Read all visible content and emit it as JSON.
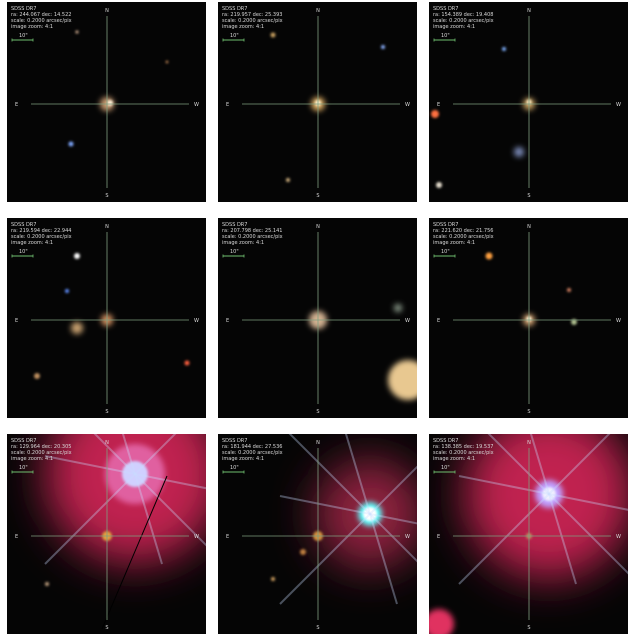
{
  "panels": [
    {
      "survey": "SDSS DR7",
      "coords": "ra: 244.067 dec: 14.522",
      "scale": "scale: 0.2000 arcsec/pix",
      "zoom": "image zoom: 4:1",
      "scale_bar": "10\"",
      "compass": {
        "n": "N",
        "e": "E",
        "w": "W",
        "s": "S"
      }
    },
    {
      "survey": "SDSS DR7",
      "coords": "ra: 219.957 dec: 25.393",
      "scale": "scale: 0.2000 arcsec/pix",
      "zoom": "image zoom: 4:1",
      "scale_bar": "10\"",
      "compass": {
        "n": "N",
        "e": "E",
        "w": "W",
        "s": "S"
      }
    },
    {
      "survey": "SDSS DR7",
      "coords": "ra: 154.389 dec: 19.408",
      "scale": "scale: 0.2000 arcsec/pix",
      "zoom": "image zoom: 4:1",
      "scale_bar": "10\"",
      "compass": {
        "n": "N",
        "e": "E",
        "w": "W",
        "s": "S"
      }
    },
    {
      "survey": "SDSS DR7",
      "coords": "ra: 219.594 dec: 22.944",
      "scale": "scale: 0.2000 arcsec/pix",
      "zoom": "image zoom: 4:1",
      "scale_bar": "10\"",
      "compass": {
        "n": "N",
        "e": "E",
        "w": "W",
        "s": "S"
      }
    },
    {
      "survey": "SDSS DR7",
      "coords": "ra: 207.798 dec: 25.141",
      "scale": "scale: 0.2000 arcsec/pix",
      "zoom": "image zoom: 4:1",
      "scale_bar": "10\"",
      "compass": {
        "n": "N",
        "e": "E",
        "w": "W",
        "s": "S"
      }
    },
    {
      "survey": "SDSS DR7",
      "coords": "ra: 221.620 dec: 21.756",
      "scale": "scale: 0.2000 arcsec/pix",
      "zoom": "image zoom: 4:1",
      "scale_bar": "10\"",
      "compass": {
        "n": "N",
        "e": "E",
        "w": "W",
        "s": "S"
      }
    },
    {
      "survey": "SDSS DR7",
      "coords": "ra: 129.964 dec: 20.305",
      "scale": "scale: 0.2000 arcsec/pix",
      "zoom": "image zoom: 4:1",
      "scale_bar": "10\"",
      "compass": {
        "n": "N",
        "e": "E",
        "w": "W",
        "s": "S"
      }
    },
    {
      "survey": "SDSS DR7",
      "coords": "ra: 181.944 dec: 27.536",
      "scale": "scale: 0.2000 arcsec/pix",
      "zoom": "image zoom: 4:1",
      "scale_bar": "10\"",
      "compass": {
        "n": "N",
        "e": "E",
        "w": "W",
        "s": "S"
      }
    },
    {
      "survey": "SDSS DR7",
      "coords": "ra: 138.385 dec: 19.537",
      "scale": "scale: 0.2000 arcsec/pix",
      "zoom": "image zoom: 4:1",
      "scale_bar": "10\"",
      "compass": {
        "n": "N",
        "e": "E",
        "w": "W",
        "s": "S"
      }
    }
  ]
}
